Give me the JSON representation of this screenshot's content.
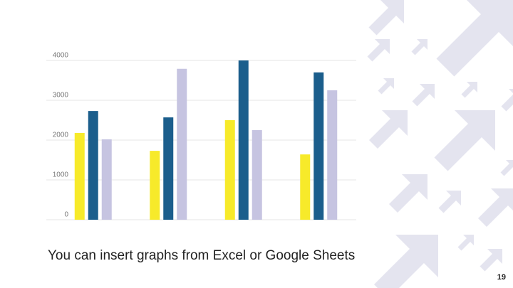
{
  "chart_data": {
    "type": "bar",
    "categories": [
      null,
      null,
      null,
      null
    ],
    "series": [
      {
        "color": "#f7ea2a",
        "values": [
          2180,
          1730,
          2500,
          1640
        ]
      },
      {
        "color": "#1b5e8c",
        "values": [
          2730,
          2570,
          4000,
          3700
        ]
      },
      {
        "color": "#c6c4e1",
        "values": [
          2020,
          3790,
          2250,
          3250
        ]
      }
    ],
    "ylim": [
      0,
      4000
    ],
    "yticks": [
      0,
      1000,
      2000,
      3000,
      4000
    ],
    "grid": true
  },
  "caption": "You can insert graphs from Excel or Google Sheets",
  "page_number": "19"
}
